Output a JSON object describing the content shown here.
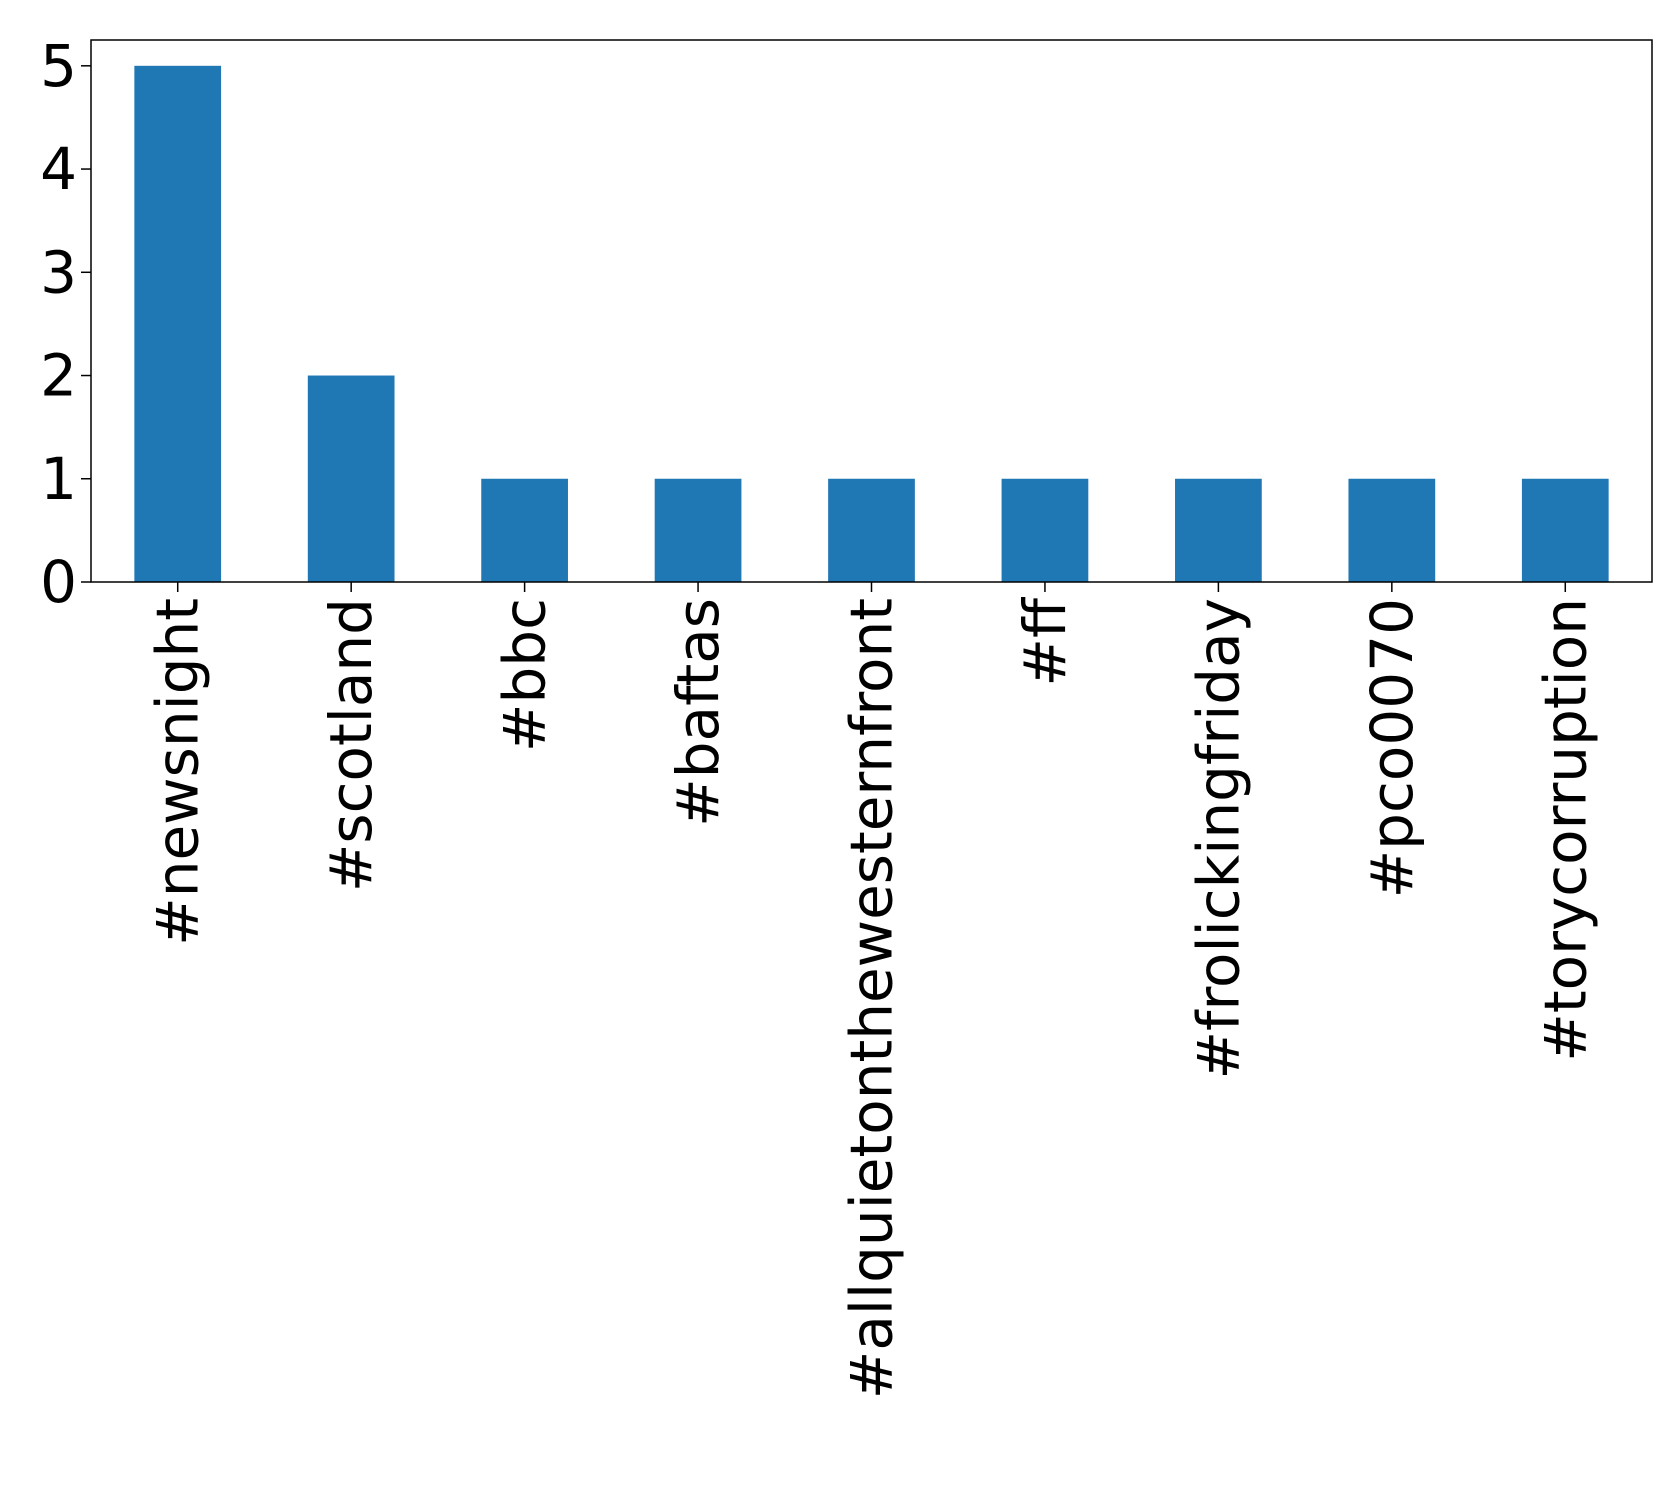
{
  "chart_data": {
    "type": "bar",
    "title": "",
    "xlabel": "",
    "ylabel": "",
    "categories": [
      "#newsnight",
      "#scotland",
      "#bbc",
      "#baftas",
      "#allquietonthewesternfront",
      "#ff",
      "#frolickingfriday",
      "#pco0070",
      "#torycorruption"
    ],
    "values": [
      5,
      2,
      1,
      1,
      1,
      1,
      1,
      1,
      1
    ],
    "ylim": [
      0,
      5.25
    ],
    "yticks": [
      0,
      1,
      2,
      3,
      4,
      5
    ],
    "grid": false,
    "legend": "none",
    "colors": {
      "bar": "#1f77b4",
      "axis": "#000000",
      "background": "#ffffff"
    }
  }
}
